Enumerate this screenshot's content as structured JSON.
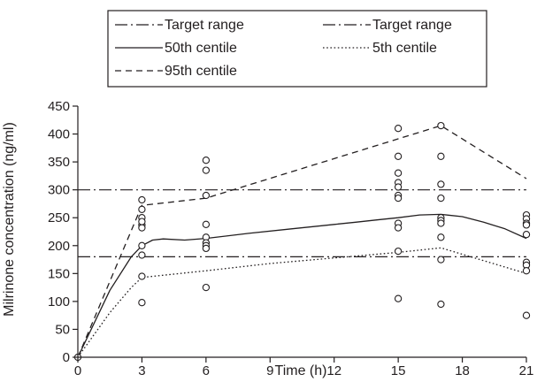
{
  "chart_data": {
    "type": "line",
    "title": "",
    "xlabel": "Time (h)",
    "ylabel": "Milrinone concentration (ng/ml)",
    "xlim": [
      0,
      21
    ],
    "ylim": [
      0,
      450
    ],
    "x_ticks": [
      0,
      3,
      6,
      9,
      12,
      15,
      18,
      21
    ],
    "y_ticks": [
      0,
      50,
      100,
      150,
      200,
      250,
      300,
      350,
      400,
      450
    ],
    "grid": false,
    "legend_placement": "top",
    "legend": [
      {
        "label": "Target range",
        "style": "dashdot"
      },
      {
        "label": "Target range",
        "style": "dashdot"
      },
      {
        "label": "50th centile",
        "style": "solid"
      },
      {
        "label": "5th centile",
        "style": "dotted"
      },
      {
        "label": "95th centile",
        "style": "dashed"
      }
    ],
    "reference_lines": [
      {
        "name": "Target range",
        "y": 300
      },
      {
        "name": "Target range",
        "y": 180
      }
    ],
    "series": [
      {
        "name": "50th centile",
        "style": "solid",
        "x": [
          0,
          1.5,
          2.5,
          3,
          3.5,
          4,
          5,
          6,
          8,
          10,
          12,
          13,
          14,
          15,
          16,
          17,
          18,
          19,
          20,
          21
        ],
        "y": [
          0,
          120,
          180,
          200,
          210,
          212,
          210,
          213,
          222,
          230,
          238,
          242,
          246,
          250,
          255,
          256,
          252,
          242,
          230,
          213
        ]
      },
      {
        "name": "5th centile",
        "style": "dotted",
        "x": [
          0,
          1.5,
          2.5,
          3,
          6,
          9,
          12,
          15,
          17,
          21
        ],
        "y": [
          0,
          80,
          125,
          143,
          155,
          168,
          178,
          188,
          196,
          150
        ]
      },
      {
        "name": "95th centile",
        "style": "dashed",
        "x": [
          0,
          3,
          6,
          17,
          21
        ],
        "y": [
          0,
          272,
          285,
          415,
          320
        ]
      }
    ],
    "observations": {
      "x": [
        0,
        3,
        3,
        3,
        3,
        3,
        3,
        3,
        3,
        3,
        3,
        6,
        6,
        6,
        6,
        6,
        6,
        6,
        6,
        6,
        15,
        15,
        15,
        15,
        15,
        15,
        15,
        15,
        15,
        15,
        15,
        17,
        17,
        17,
        17,
        17,
        17,
        17,
        17,
        17,
        17,
        21,
        21,
        21,
        21,
        21,
        21,
        21,
        21,
        21
      ],
      "y": [
        0,
        282,
        265,
        250,
        237,
        232,
        200,
        183,
        145,
        98,
        243,
        353,
        335,
        290,
        238,
        215,
        205,
        200,
        195,
        125,
        410,
        360,
        313,
        305,
        290,
        285,
        240,
        232,
        190,
        105,
        330,
        415,
        360,
        310,
        285,
        250,
        245,
        240,
        215,
        175,
        95,
        255,
        248,
        240,
        237,
        220,
        170,
        165,
        155,
        75
      ]
    }
  }
}
